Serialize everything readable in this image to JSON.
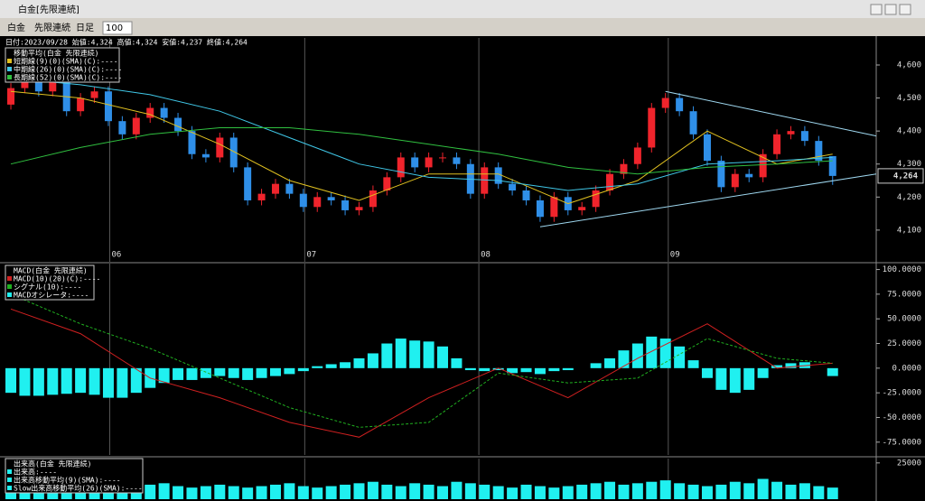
{
  "window": {
    "title": "白金[先限連続]",
    "toolbar": [
      "白金",
      "先限連続",
      "日足",
      "100"
    ]
  },
  "chart_data": [
    {
      "type": "candlestick",
      "info": "日付:2023/09/28 始値:4,324 高値:4,324 安値:4,237 終値:4,264",
      "legend_title": "移動平均(白金 先限連続)",
      "xlim": [
        -0.78,
        62.13
      ],
      "ylim": [
        4004,
        4682
      ],
      "xticks": [
        {
          "value": 7.1,
          "label": "06"
        },
        {
          "value": 21.1,
          "label": "07"
        },
        {
          "value": 33.6,
          "label": "08"
        },
        {
          "value": 47.2,
          "label": "09"
        }
      ],
      "yticks": [
        {
          "value": 4600,
          "label": "4,600"
        },
        {
          "value": 4500,
          "label": "4,500"
        },
        {
          "value": 4400,
          "label": "4,400"
        },
        {
          "value": 4300,
          "label": "4,300"
        },
        {
          "value": 4200,
          "label": "4,200"
        },
        {
          "value": 4100,
          "label": "4,100"
        }
      ],
      "last_price": {
        "value": 4264,
        "label": "4,264"
      },
      "up_color": "#f0242c",
      "down_color": "#2f8fe8",
      "open": [
        4480,
        4530,
        4560,
        4520,
        4550,
        4460,
        4500,
        4520,
        4430,
        4390,
        4440,
        4470,
        4440,
        4400,
        4330,
        4320,
        4380,
        4290,
        4190,
        4210,
        4240,
        4210,
        4170,
        4200,
        4190,
        4160,
        4170,
        4220,
        4260,
        4320,
        4290,
        4320,
        4320,
        4300,
        4210,
        4290,
        4240,
        4220,
        4190,
        4140,
        4200,
        4160,
        4170,
        4220,
        4270,
        4300,
        4350,
        4470,
        4500,
        4460,
        4390,
        4310,
        4230,
        4270,
        4260,
        4330,
        4390,
        4400,
        4370,
        4324
      ],
      "high": [
        4545,
        4575,
        4575,
        4565,
        4565,
        4515,
        4535,
        4535,
        4445,
        4455,
        4485,
        4485,
        4455,
        4415,
        4345,
        4395,
        4395,
        4305,
        4225,
        4255,
        4255,
        4225,
        4215,
        4215,
        4205,
        4185,
        4235,
        4275,
        4335,
        4335,
        4335,
        4335,
        4335,
        4315,
        4305,
        4305,
        4255,
        4235,
        4205,
        4215,
        4215,
        4185,
        4235,
        4285,
        4315,
        4365,
        4485,
        4515,
        4515,
        4475,
        4405,
        4325,
        4285,
        4285,
        4345,
        4405,
        4415,
        4415,
        4385,
        4324
      ],
      "low": [
        4465,
        4515,
        4505,
        4505,
        4445,
        4445,
        4485,
        4415,
        4375,
        4375,
        4425,
        4425,
        4385,
        4315,
        4305,
        4305,
        4275,
        4175,
        4175,
        4195,
        4195,
        4155,
        4155,
        4175,
        4145,
        4145,
        4155,
        4205,
        4245,
        4275,
        4275,
        4305,
        4285,
        4195,
        4195,
        4225,
        4205,
        4175,
        4125,
        4125,
        4145,
        4145,
        4155,
        4205,
        4255,
        4285,
        4335,
        4455,
        4445,
        4375,
        4295,
        4215,
        4215,
        4245,
        4245,
        4315,
        4375,
        4355,
        4295,
        4237
      ],
      "close": [
        4530,
        4560,
        4520,
        4550,
        4460,
        4500,
        4520,
        4430,
        4390,
        4440,
        4470,
        4440,
        4400,
        4330,
        4320,
        4380,
        4290,
        4190,
        4210,
        4240,
        4210,
        4170,
        4200,
        4190,
        4160,
        4170,
        4220,
        4260,
        4320,
        4290,
        4320,
        4320,
        4300,
        4210,
        4290,
        4240,
        4220,
        4190,
        4140,
        4200,
        4160,
        4170,
        4220,
        4270,
        4300,
        4350,
        4470,
        4500,
        4460,
        4390,
        4310,
        4230,
        4270,
        4260,
        4330,
        4390,
        4400,
        4370,
        4310,
        4264
      ],
      "line_index": [
        0,
        5,
        10,
        15,
        20,
        25,
        30,
        35,
        40,
        45,
        50,
        55,
        59
      ],
      "series": [
        {
          "name": "短期線(9)(0)(SMA)(C):----",
          "color": "#e0c020",
          "values": [
            4520,
            4500,
            4450,
            4360,
            4250,
            4190,
            4270,
            4270,
            4180,
            4250,
            4400,
            4300,
            4330
          ]
        },
        {
          "name": "中期線(26)(0)(SMA)(C):----",
          "color": "#40c8e8",
          "values": [
            4560,
            4540,
            4510,
            4460,
            4380,
            4300,
            4260,
            4250,
            4220,
            4240,
            4300,
            4310,
            4320
          ]
        },
        {
          "name": "長期線(52)(0)(SMA)(C):----",
          "color": "#30c040",
          "values": [
            4300,
            4350,
            4390,
            4410,
            4410,
            4390,
            4360,
            4330,
            4290,
            4270,
            4290,
            4300,
            4310
          ]
        }
      ],
      "trendlines": [
        {
          "color": "#9fd8f0",
          "x": [
            47,
            62.13
          ],
          "y": [
            4520,
            4385
          ]
        },
        {
          "color": "#9fd8f0",
          "x": [
            38,
            62.13
          ],
          "y": [
            4110,
            4270
          ]
        }
      ]
    },
    {
      "type": "macd",
      "legend_title": "MACD(白金 先限連続)",
      "xlim": [
        -0.78,
        62.13
      ],
      "ylim": [
        -88000,
        106000
      ],
      "yticks": [
        {
          "value": 100000,
          "label": "100.0000"
        },
        {
          "value": 75000,
          "label": "75.0000"
        },
        {
          "value": 50000,
          "label": "50.0000"
        },
        {
          "value": 25000,
          "label": "25.0000"
        },
        {
          "value": 0,
          "label": "0.0000"
        },
        {
          "value": -25000,
          "label": "-25.0000"
        },
        {
          "value": -50000,
          "label": "-50.0000"
        },
        {
          "value": -75000,
          "label": "-75.0000"
        }
      ],
      "line_index": [
        0,
        5,
        10,
        15,
        20,
        25,
        30,
        35,
        40,
        45,
        50,
        55,
        59
      ],
      "series": [
        {
          "name": "MACD(10)(20)(C):----",
          "color": "#d02020",
          "values": [
            60000,
            35000,
            -10000,
            -30000,
            -55000,
            -70000,
            -30000,
            0,
            -30000,
            10000,
            45000,
            0,
            5000
          ]
        },
        {
          "name": "シグナル(10):----",
          "color": "#20b020",
          "dashed": true,
          "values": [
            75000,
            45000,
            20000,
            -10000,
            -40000,
            -60000,
            -55000,
            -5000,
            -15000,
            -10000,
            30000,
            10000,
            5000
          ]
        }
      ],
      "histogram": {
        "name": "MACDオシレータ:----",
        "color": "#20f0f0",
        "values": [
          -25000,
          -28000,
          -28000,
          -27000,
          -26000,
          -25000,
          -27000,
          -30000,
          -30000,
          -25000,
          -20000,
          -15000,
          -12000,
          -12000,
          -10000,
          -8000,
          -10000,
          -12000,
          -10000,
          -8000,
          -6000,
          -3000,
          2000,
          4000,
          6000,
          10000,
          15000,
          25000,
          30000,
          28000,
          27000,
          22000,
          10000,
          -2000,
          -3000,
          -2000,
          -5000,
          -4000,
          -6000,
          -3000,
          -2000,
          0,
          5000,
          10000,
          18000,
          25000,
          32000,
          30000,
          22000,
          8000,
          -10000,
          -22000,
          -25000,
          -22000,
          -10000,
          3000,
          5000,
          6000,
          0,
          -8000
        ]
      }
    },
    {
      "type": "volume",
      "legend_title": "出来高(白金 先限連続)",
      "xlim": [
        -0.78,
        62.13
      ],
      "ylim": [
        0,
        28000
      ],
      "yticks": [
        25000
      ],
      "color": "#20f0f0",
      "legend": [
        "出来高:----",
        "出来高移動平均(9)(SMA):----",
        "Slow出来高移動平均(26)(SMA):----"
      ],
      "values": [
        9000,
        8000,
        9000,
        10000,
        8000,
        9000,
        10000,
        9000,
        8000,
        9000,
        10000,
        11000,
        9000,
        8000,
        9000,
        10000,
        9000,
        8000,
        9000,
        10000,
        11000,
        9000,
        8000,
        9000,
        10000,
        11000,
        12000,
        10000,
        9000,
        11000,
        10000,
        9000,
        12000,
        11000,
        10000,
        9000,
        8000,
        10000,
        9000,
        8000,
        9000,
        10000,
        11000,
        12000,
        10000,
        11000,
        12000,
        13000,
        11000,
        10000,
        9000,
        10000,
        12000,
        11000,
        14000,
        12000,
        10000,
        11000,
        9000,
        8000
      ]
    }
  ]
}
